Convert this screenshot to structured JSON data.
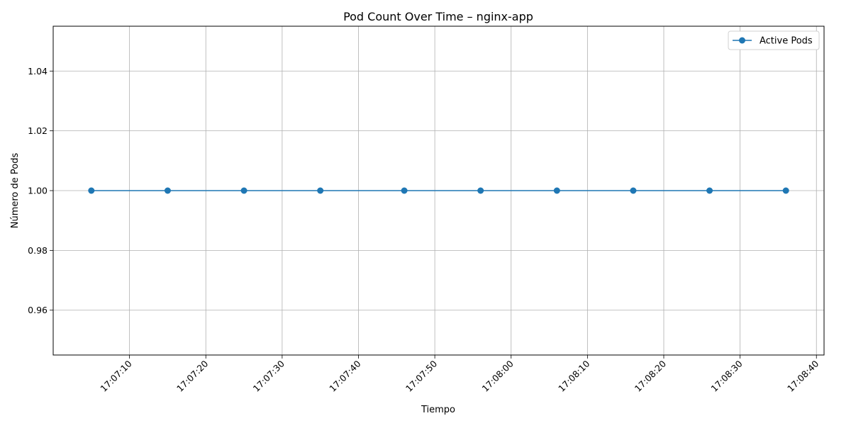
{
  "chart_data": {
    "type": "line",
    "title": "Pod Count Over Time – nginx-app",
    "xlabel": "Tiempo",
    "ylabel": "Número de Pods",
    "x_type": "time",
    "x_range": [
      "17:07:00",
      "17:08:41"
    ],
    "x_ticks": [
      "17:07:10",
      "17:07:20",
      "17:07:30",
      "17:07:40",
      "17:07:50",
      "17:08:00",
      "17:08:10",
      "17:08:20",
      "17:08:30",
      "17:08:40"
    ],
    "ylim": [
      0.945,
      1.055
    ],
    "y_ticks": [
      "0.96",
      "0.98",
      "1.00",
      "1.02",
      "1.04"
    ],
    "y_tick_values": [
      0.96,
      0.98,
      1.0,
      1.02,
      1.04
    ],
    "grid": true,
    "legend_position": "top-right",
    "series": [
      {
        "name": "Active Pods",
        "color": "#1f77b4",
        "marker": "circle",
        "x": [
          "17:07:05",
          "17:07:15",
          "17:07:25",
          "17:07:35",
          "17:07:46",
          "17:07:56",
          "17:08:06",
          "17:08:16",
          "17:08:26",
          "17:08:36"
        ],
        "y": [
          1,
          1,
          1,
          1,
          1,
          1,
          1,
          1,
          1,
          1
        ]
      }
    ]
  }
}
